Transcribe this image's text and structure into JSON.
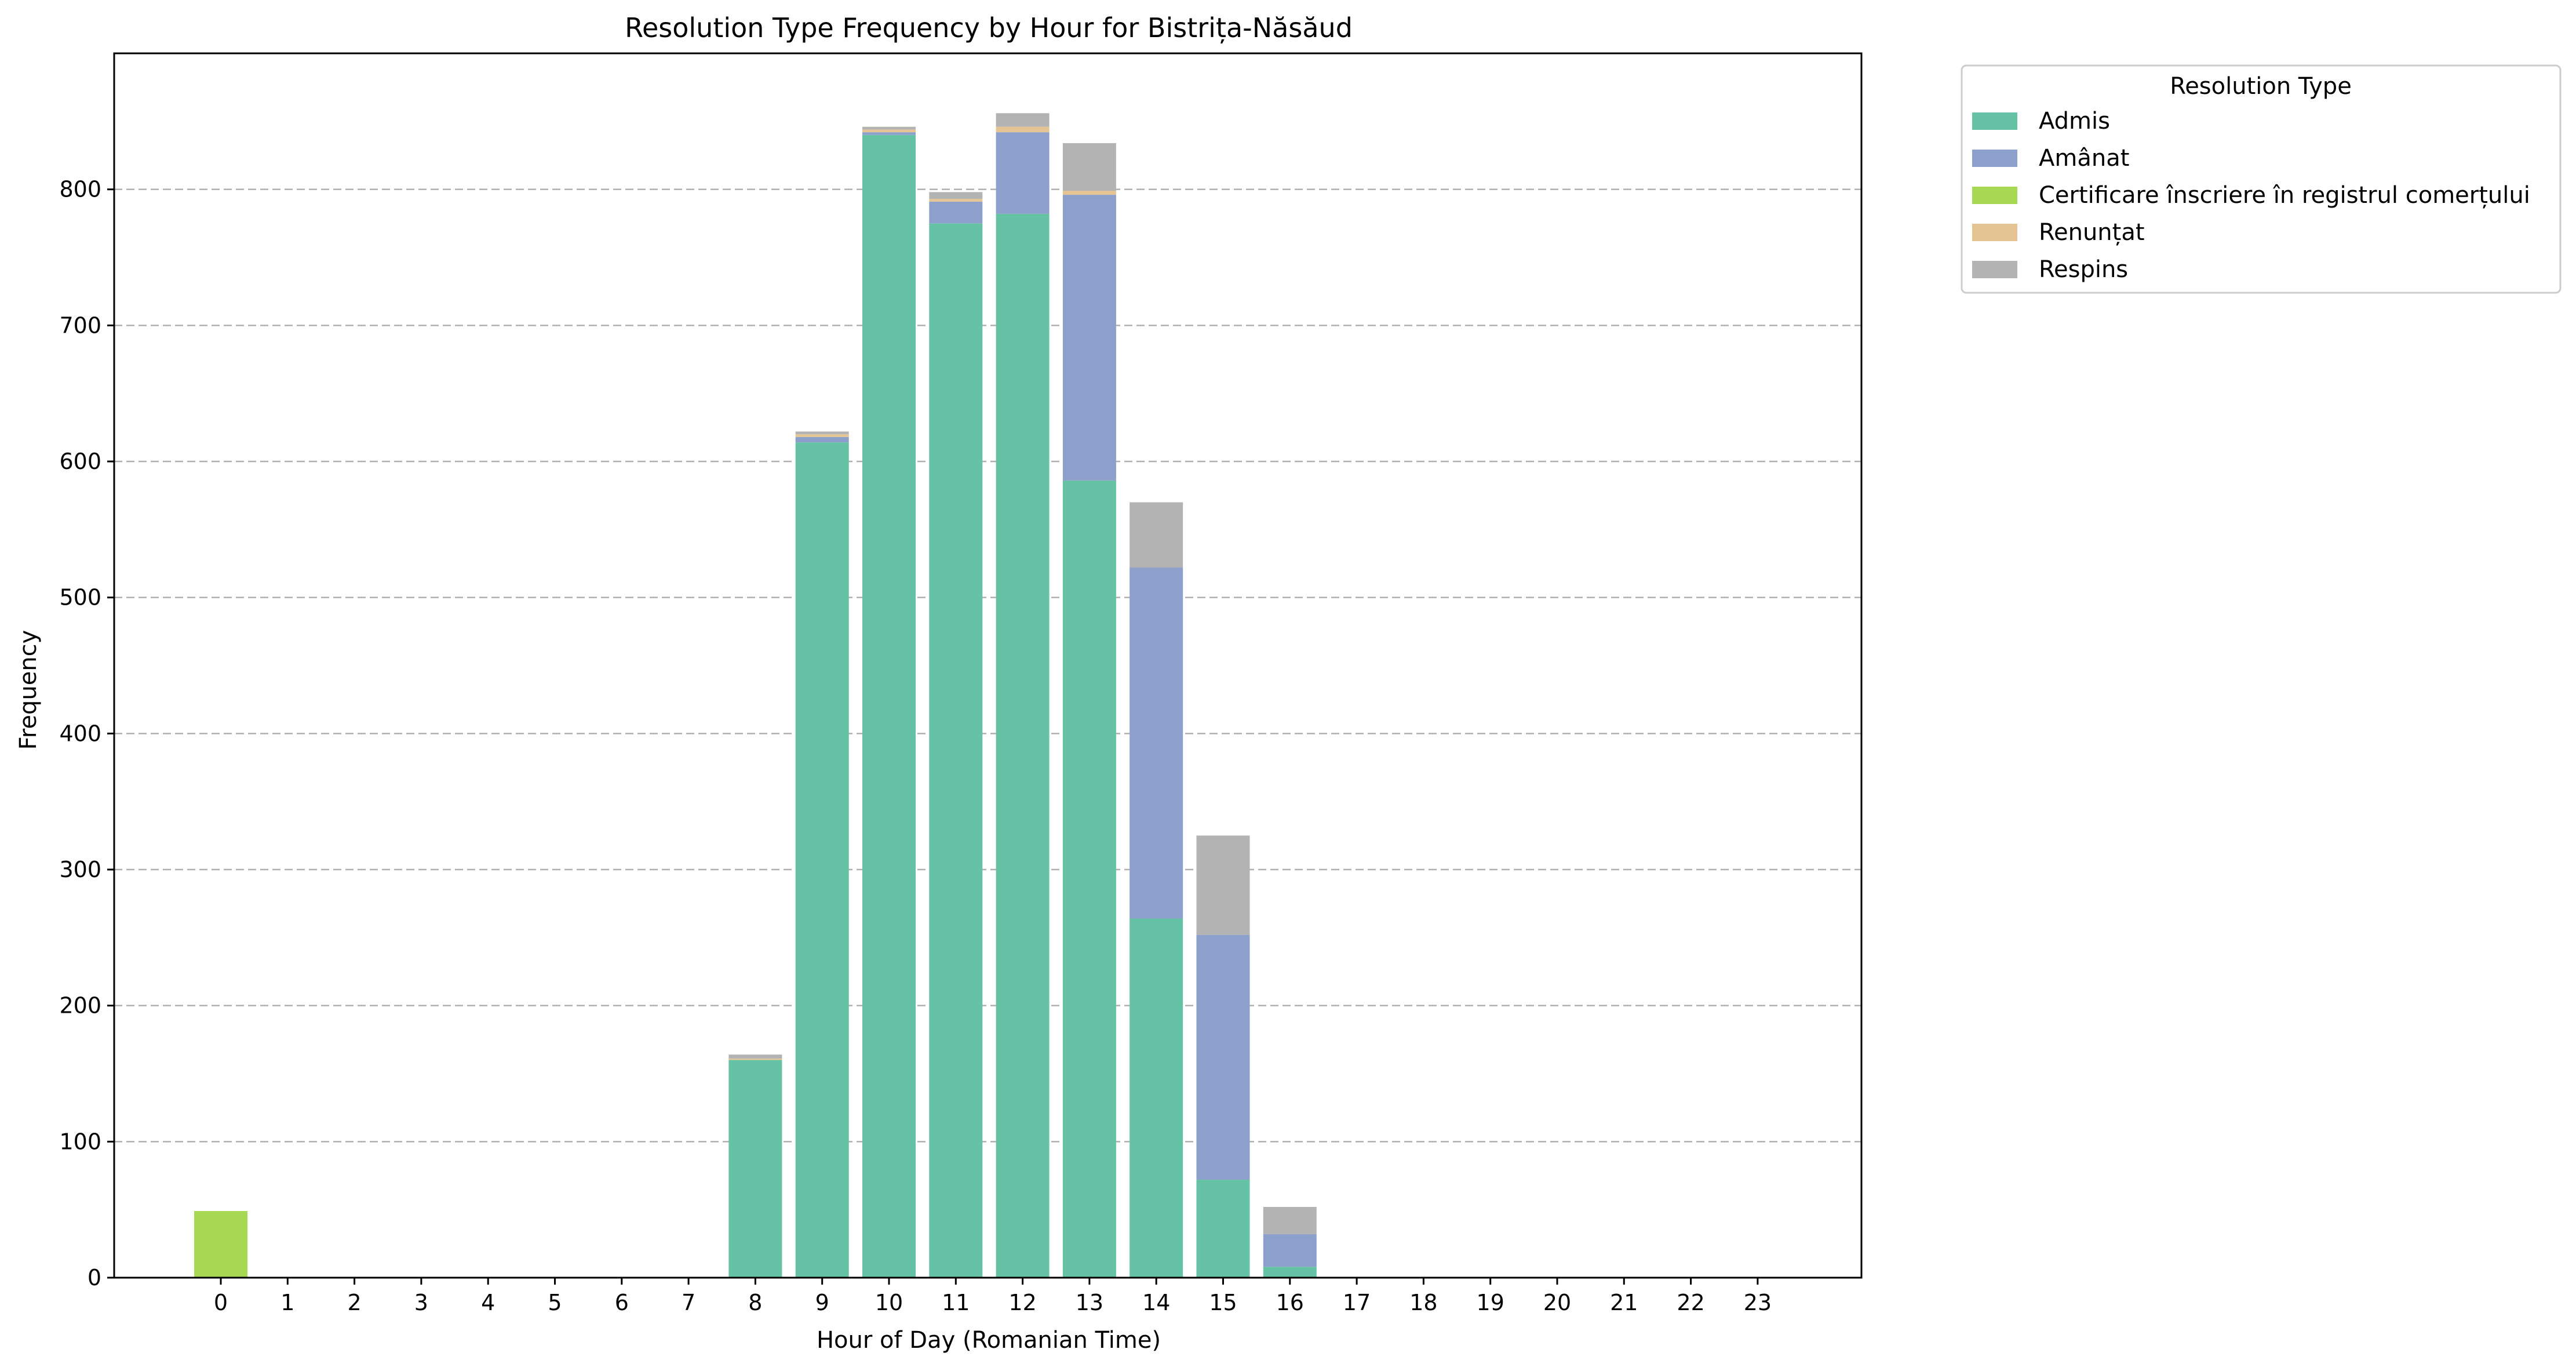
{
  "chart_data": {
    "type": "bar",
    "stacked": true,
    "title": "Resolution Type Frequency by Hour for Bistrița-Năsăud",
    "xlabel": "Hour of Day (Romanian Time)",
    "ylabel": "Frequency",
    "categories": [
      "0",
      "1",
      "2",
      "3",
      "4",
      "5",
      "6",
      "7",
      "8",
      "9",
      "10",
      "11",
      "12",
      "13",
      "14",
      "15",
      "16",
      "17",
      "18",
      "19",
      "20",
      "21",
      "22",
      "23"
    ],
    "ylim": [
      0,
      900
    ],
    "yticks": [
      0,
      100,
      200,
      300,
      400,
      500,
      600,
      700,
      800
    ],
    "grid": "y-dashed",
    "series": [
      {
        "name": "Admis",
        "color": "#66c2a5",
        "values": [
          0,
          0,
          0,
          0,
          0,
          0,
          0,
          0,
          160,
          614,
          840,
          775,
          782,
          586,
          264,
          72,
          8,
          0,
          0,
          0,
          0,
          0,
          0,
          0
        ]
      },
      {
        "name": "Amânat",
        "color": "#8da0cb",
        "values": [
          0,
          0,
          0,
          0,
          0,
          0,
          0,
          0,
          0,
          4,
          2,
          16,
          60,
          210,
          258,
          180,
          24,
          0,
          0,
          0,
          0,
          0,
          0,
          0
        ]
      },
      {
        "name": "Certificare înscriere în registrul comerțului",
        "color": "#a6d854",
        "values": [
          49,
          0,
          0,
          0,
          0,
          0,
          0,
          0,
          0,
          0,
          0,
          0,
          0,
          0,
          0,
          0,
          0,
          0,
          0,
          0,
          0,
          0,
          0,
          0
        ]
      },
      {
        "name": "Renunțat",
        "color": "#e5c494",
        "values": [
          0,
          0,
          0,
          0,
          0,
          0,
          0,
          0,
          1,
          2,
          2,
          2,
          4,
          3,
          0,
          0,
          0,
          0,
          0,
          0,
          0,
          0,
          0,
          0
        ]
      },
      {
        "name": "Respins",
        "color": "#b3b3b3",
        "values": [
          0,
          0,
          0,
          0,
          0,
          0,
          0,
          0,
          3,
          2,
          2,
          5,
          10,
          35,
          48,
          73,
          20,
          0,
          0,
          0,
          0,
          0,
          0,
          0
        ]
      }
    ],
    "legend": {
      "title": "Resolution Type",
      "placement": "outside-top-right"
    }
  }
}
